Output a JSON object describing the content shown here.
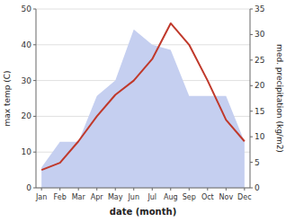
{
  "chart_data": {
    "type": "line",
    "xlabel": "date (month)",
    "ylabel": "max temp (C)",
    "y2label": "med. precipitation (kg/m2)",
    "categories": [
      "Jan",
      "Feb",
      "Mar",
      "Apr",
      "May",
      "Jun",
      "Jul",
      "Aug",
      "Sep",
      "Oct",
      "Nov",
      "Dec"
    ],
    "series": [
      {
        "type": "area",
        "axis": "y2",
        "color": "#c5cff0",
        "values": [
          4,
          9,
          9,
          18,
          21,
          31,
          28,
          27,
          18,
          18,
          18,
          9
        ]
      },
      {
        "type": "line",
        "color": "#c0392b",
        "values": [
          5,
          7,
          13,
          20,
          26,
          30,
          36,
          46,
          40,
          30,
          19,
          13
        ]
      }
    ],
    "ylim": [
      0,
      50
    ],
    "yticks": [
      0,
      10,
      20,
      30,
      40,
      50
    ],
    "y2lim": [
      0,
      35
    ],
    "y2ticks": [
      0,
      5,
      10,
      15,
      20,
      25,
      30,
      35
    ],
    "grid": true
  }
}
